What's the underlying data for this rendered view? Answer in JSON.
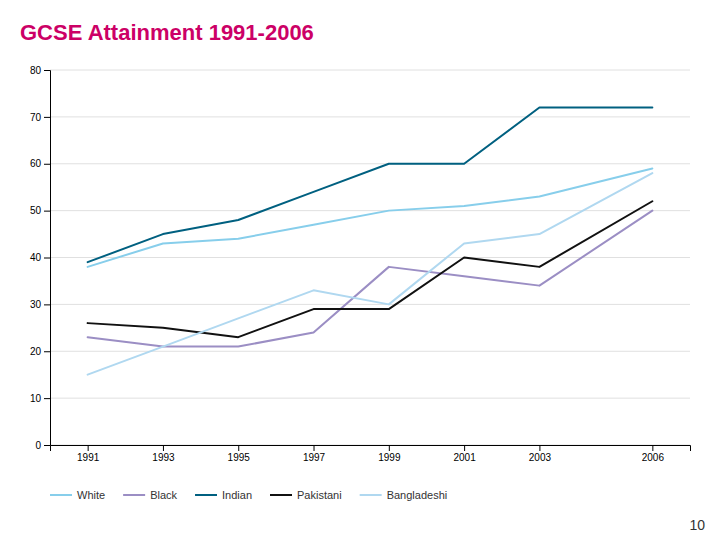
{
  "chart_data": {
    "type": "line",
    "title": "GCSE Attainment 1991-2006",
    "x": [
      1991,
      1993,
      1995,
      1997,
      1999,
      2001,
      2003,
      2006
    ],
    "series": [
      {
        "name": "White",
        "color": "#87CEEB",
        "values": [
          38,
          43,
          44,
          47,
          50,
          51,
          53,
          59
        ]
      },
      {
        "name": "Black",
        "color": "#9b8ec4",
        "values": [
          23,
          21,
          21,
          24,
          38,
          36,
          34,
          50
        ]
      },
      {
        "name": "Indian",
        "color": "#006080",
        "values": [
          39,
          45,
          48,
          54,
          60,
          60,
          72,
          72
        ]
      },
      {
        "name": "Pakistani",
        "color": "#111111",
        "values": [
          26,
          25,
          23,
          29,
          29,
          40,
          38,
          52
        ]
      },
      {
        "name": "Bangladeshi",
        "color": "#b0d8f0",
        "values": [
          15,
          21,
          27,
          33,
          30,
          43,
          45,
          58
        ]
      }
    ],
    "xlim": [
      1990,
      2007
    ],
    "xticks": [
      1991,
      1993,
      1995,
      1997,
      1999,
      2001,
      2003,
      2006
    ],
    "ylim": [
      0,
      80
    ],
    "yticks": [
      0,
      10,
      20,
      30,
      40,
      50,
      60,
      70,
      80
    ],
    "grid": true,
    "legend": "bottom",
    "annotations": [
      "10"
    ]
  }
}
